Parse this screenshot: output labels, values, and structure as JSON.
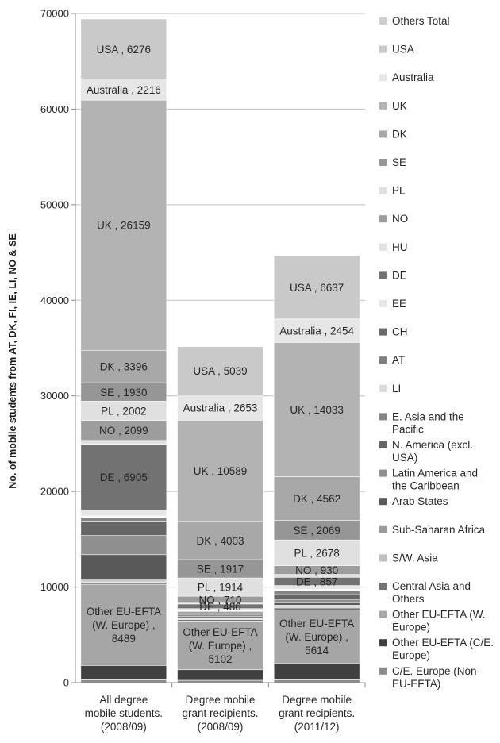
{
  "chart_data": {
    "type": "bar",
    "stacked": true,
    "ylabel": "No. of mobile students from AT, DK, FI, IE, LI, NO & SE",
    "ylim": [
      0,
      70000
    ],
    "yticks": [
      0,
      10000,
      20000,
      30000,
      40000,
      50000,
      60000,
      70000
    ],
    "grid": true,
    "legend_position": "right",
    "categories": [
      "All degree mobile students. (2008/09)",
      "Degree mobile grant recipients. (2008/09)",
      "Degree mobile grant recipients. (2011/12)"
    ],
    "category_lines": [
      [
        "All degree",
        "mobile students.",
        "(2008/09)"
      ],
      [
        "Degree mobile",
        "grant recipients.",
        "(2008/09)"
      ],
      [
        "Degree mobile",
        "grant recipients.",
        "(2011/12)"
      ]
    ],
    "series": [
      {
        "name": "C/E. Europe (Non-EU-EFTA)",
        "legend_lines": [
          "C/E. Europe (Non-",
          "EU-EFTA)"
        ],
        "color": "#8c8c8c",
        "values": [
          300,
          250,
          300
        ],
        "labels": [
          "",
          "",
          ""
        ]
      },
      {
        "name": "Other EU-EFTA (C/E. Europe)",
        "legend_lines": [
          "Other EU-EFTA (C/E.",
          "Europe)"
        ],
        "color": "#404040",
        "values": [
          1500,
          1100,
          1700
        ],
        "labels": [
          "",
          "",
          ""
        ]
      },
      {
        "name": "Other EU-EFTA (W. Europe)",
        "legend_lines": [
          "Other EU-EFTA (W.",
          "Europe)"
        ],
        "color": "#a6a6a6",
        "values": [
          8489,
          5102,
          5614
        ],
        "labels": [
          [
            "Other EU-EFTA",
            "(W. Europe) ,",
            "8489"
          ],
          [
            "Other EU-EFTA",
            "(W. Europe) ,",
            "5102"
          ],
          [
            "Other EU-EFTA",
            "(W. Europe) ,",
            "5614"
          ]
        ]
      },
      {
        "name": "Central Asia and Others",
        "legend_lines": [
          "Central Asia and",
          "Others"
        ],
        "color": "#737373",
        "values": [
          200,
          150,
          200
        ],
        "labels": [
          "",
          "",
          ""
        ]
      },
      {
        "name": "S/W. Asia",
        "legend_lines": [
          "S/W. Asia"
        ],
        "color": "#bfbfbf",
        "values": [
          150,
          100,
          150
        ],
        "labels": [
          "",
          "",
          ""
        ]
      },
      {
        "name": "Sub-Saharan Africa",
        "legend_lines": [
          "Sub-Saharan Africa"
        ],
        "color": "#9a9a9a",
        "values": [
          150,
          100,
          150
        ],
        "labels": [
          "",
          "",
          ""
        ]
      },
      {
        "name": "Arab States",
        "legend_lines": [
          "Arab States"
        ],
        "color": "#595959",
        "values": [
          2600,
          150,
          250
        ],
        "labels": [
          "",
          "",
          ""
        ]
      },
      {
        "name": "Latin America and the Caribbean",
        "legend_lines": [
          "Latin America and",
          "the Caribbean"
        ],
        "color": "#8f8f8f",
        "values": [
          2000,
          200,
          350
        ],
        "labels": [
          "",
          "",
          ""
        ]
      },
      {
        "name": "N. America (excl. USA)",
        "legend_lines": [
          "N. America (excl.",
          "USA)"
        ],
        "color": "#666666",
        "values": [
          1500,
          150,
          500
        ],
        "labels": [
          "",
          "",
          ""
        ]
      },
      {
        "name": "E. Asia and the Pacific",
        "legend_lines": [
          "E. Asia and the",
          "Pacific"
        ],
        "color": "#858585",
        "values": [
          400,
          150,
          400
        ],
        "labels": [
          "",
          "",
          ""
        ]
      },
      {
        "name": "LI",
        "legend_lines": [
          "LI"
        ],
        "color": "#dadada",
        "values": [
          50,
          30,
          50
        ],
        "labels": [
          "",
          "",
          ""
        ]
      },
      {
        "name": "AT",
        "legend_lines": [
          "AT"
        ],
        "color": "#7f7f7f",
        "values": [
          50,
          30,
          50
        ],
        "labels": [
          "",
          "",
          ""
        ]
      },
      {
        "name": "CH",
        "legend_lines": [
          "CH"
        ],
        "color": "#6b6b6b",
        "values": [
          50,
          30,
          50
        ],
        "labels": [
          "",
          "",
          ""
        ]
      },
      {
        "name": "EE",
        "legend_lines": [
          "EE"
        ],
        "color": "#e6e6e6",
        "values": [
          600,
          200,
          400
        ],
        "labels": [
          "",
          "",
          ""
        ]
      },
      {
        "name": "DE",
        "legend_lines": [
          "DE"
        ],
        "color": "#727272",
        "values": [
          6905,
          486,
          857
        ],
        "labels": [
          "DE , 6905",
          "DE , 486",
          "DE , 857"
        ]
      },
      {
        "name": "HU",
        "legend_lines": [
          "HU"
        ],
        "color": "#e2e2e2",
        "values": [
          400,
          100,
          300
        ],
        "labels": [
          "",
          "",
          ""
        ]
      },
      {
        "name": "NO",
        "legend_lines": [
          "NO"
        ],
        "color": "#9d9d9d",
        "values": [
          2099,
          710,
          930
        ],
        "labels": [
          "NO , 2099",
          "NO , 710",
          "NO , 930"
        ]
      },
      {
        "name": "PL",
        "legend_lines": [
          "PL"
        ],
        "color": "#e0e0e0",
        "values": [
          2002,
          1914,
          2678
        ],
        "labels": [
          "PL , 2002",
          "PL , 1914",
          "PL , 2678"
        ]
      },
      {
        "name": "SE",
        "legend_lines": [
          "SE"
        ],
        "color": "#969696",
        "values": [
          1930,
          1917,
          2069
        ],
        "labels": [
          "SE , 1930",
          "SE , 1917",
          "SE , 2069"
        ]
      },
      {
        "name": "DK",
        "legend_lines": [
          "DK"
        ],
        "color": "#a8a8a8",
        "values": [
          3396,
          4003,
          4562
        ],
        "labels": [
          "DK , 3396",
          "DK , 4003",
          "DK , 4562"
        ]
      },
      {
        "name": "UK",
        "legend_lines": [
          "UK"
        ],
        "color": "#b3b3b3",
        "values": [
          26159,
          10589,
          14033
        ],
        "labels": [
          "UK , 26159",
          "UK , 10589",
          "UK , 14033"
        ]
      },
      {
        "name": "Australia",
        "legend_lines": [
          "Australia"
        ],
        "color": "#e6e6e6",
        "values": [
          2216,
          2653,
          2454
        ],
        "labels": [
          "Australia , 2216",
          "Australia , 2653",
          "Australia , 2454"
        ]
      },
      {
        "name": "USA",
        "legend_lines": [
          "USA"
        ],
        "color": "#c9c9c9",
        "values": [
          6276,
          5039,
          6637
        ],
        "labels": [
          "USA , 6276",
          "USA , 5039",
          "USA , 6637"
        ]
      },
      {
        "name": "Others  Total",
        "legend_lines": [
          "Others  Total"
        ],
        "color": "#cfcfcf",
        "values": [
          0,
          0,
          0
        ],
        "labels": [
          "",
          "",
          ""
        ]
      }
    ]
  }
}
